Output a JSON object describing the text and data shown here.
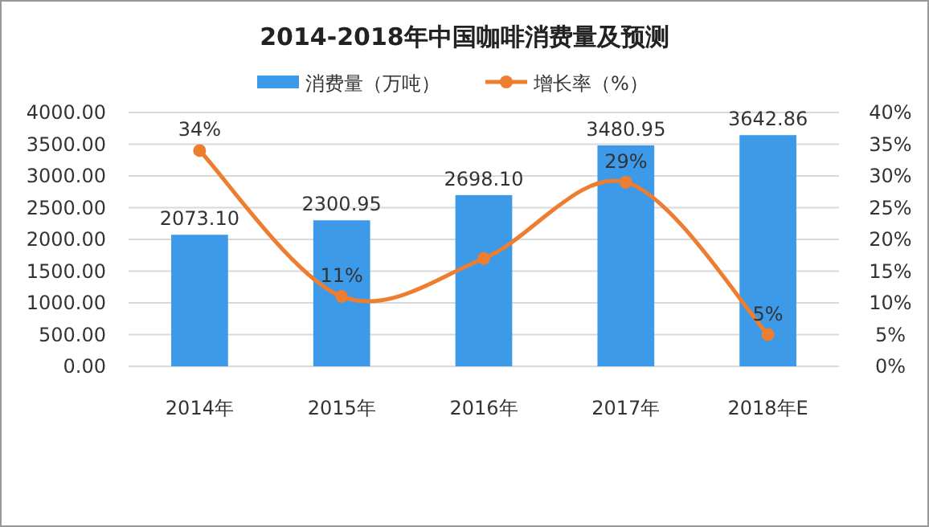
{
  "chart_data": {
    "type": "bar",
    "title": "2014-2018年中国咖啡消费量及预测",
    "categories": [
      "2014年",
      "2015年",
      "2016年",
      "2017年",
      "2018年E"
    ],
    "series": [
      {
        "name": "消费量（万吨）",
        "type": "bar",
        "color": "#3d9ae8",
        "values": [
          2073.1,
          2300.95,
          2698.1,
          3480.95,
          3642.86
        ],
        "value_labels": [
          "2073.10",
          "2300.95",
          "2698.10",
          "3480.95",
          "3642.86"
        ]
      },
      {
        "name": "增长率（%）",
        "type": "line",
        "axis": "y2",
        "color": "#ed7d31",
        "marker": "circle",
        "values": [
          34,
          11,
          17,
          29,
          5
        ],
        "value_labels": [
          "34%",
          "11%",
          null,
          "29%",
          "5%"
        ]
      }
    ],
    "ylim": [
      0,
      4000
    ],
    "yticks": [
      {
        "value": 0,
        "label": "0.00"
      },
      {
        "value": 500,
        "label": "500.00"
      },
      {
        "value": 1000,
        "label": "1000.00"
      },
      {
        "value": 1500,
        "label": "1500.00"
      },
      {
        "value": 2000,
        "label": "2000.00"
      },
      {
        "value": 2500,
        "label": "2500.00"
      },
      {
        "value": 3000,
        "label": "3000.00"
      },
      {
        "value": 3500,
        "label": "3500.00"
      },
      {
        "value": 4000,
        "label": "4000.00"
      }
    ],
    "y2lim": [
      0,
      40
    ],
    "y2ticks": [
      {
        "value": 0,
        "label": "0%"
      },
      {
        "value": 5,
        "label": "5%"
      },
      {
        "value": 10,
        "label": "10%"
      },
      {
        "value": 15,
        "label": "15%"
      },
      {
        "value": 20,
        "label": "20%"
      },
      {
        "value": 25,
        "label": "25%"
      },
      {
        "value": 30,
        "label": "30%"
      },
      {
        "value": 35,
        "label": "35%"
      },
      {
        "value": 40,
        "label": "40%"
      }
    ],
    "grid": "y",
    "legend": "top"
  }
}
